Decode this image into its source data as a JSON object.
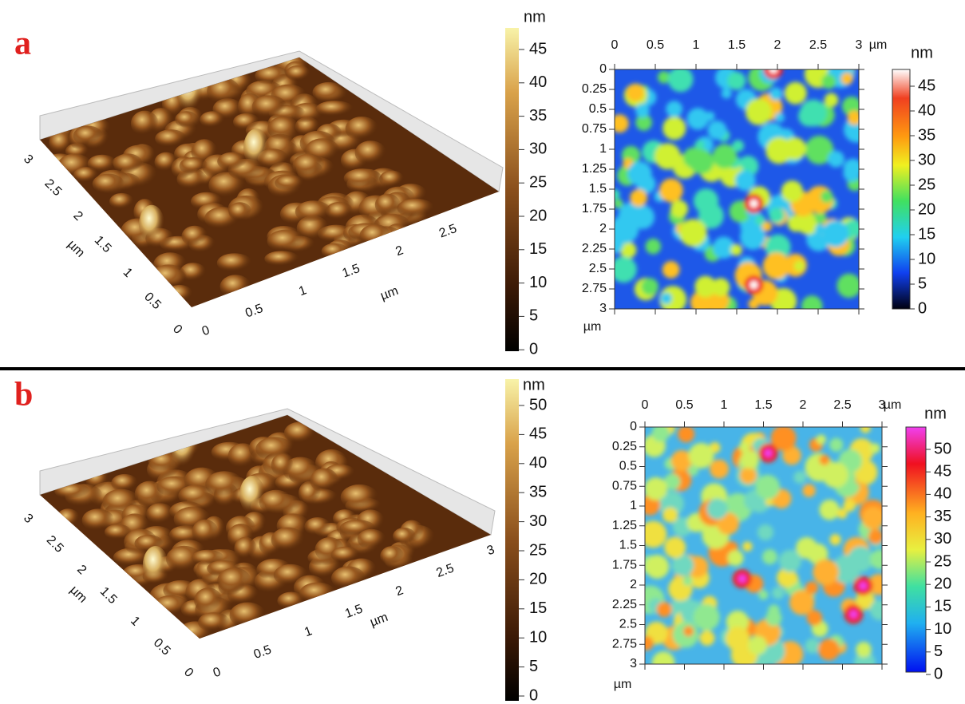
{
  "panels": [
    {
      "label": "a",
      "surface_3d": {
        "x_ticks": [
          0,
          0.5,
          1,
          1.5,
          2,
          2.5
        ],
        "x_unit": "µm",
        "y_ticks": [
          0,
          0.5,
          1,
          1.5,
          2,
          2.5,
          3
        ],
        "y_unit": "µm"
      },
      "colorbar_3d": {
        "unit": "nm",
        "ticks": [
          45,
          40,
          35,
          30,
          25,
          20,
          15,
          10,
          5,
          0
        ]
      },
      "map_2d": {
        "x_ticks": [
          0,
          0.5,
          1,
          1.5,
          2,
          2.5,
          3
        ],
        "x_unit": "µm",
        "y_ticks": [
          0,
          0.25,
          0.5,
          0.75,
          1,
          1.25,
          1.5,
          1.75,
          2,
          2.25,
          2.5,
          2.75,
          3
        ],
        "y_unit": "µm"
      },
      "colorbar_2d": {
        "unit": "nm",
        "ticks": [
          45,
          40,
          35,
          30,
          25,
          20,
          15,
          10,
          5,
          0
        ]
      }
    },
    {
      "label": "b",
      "surface_3d": {
        "x_ticks": [
          0,
          0.5,
          1,
          1.5,
          2,
          2.5,
          3
        ],
        "x_unit": "µm",
        "y_ticks": [
          0,
          0.5,
          1,
          1.5,
          2,
          2.5,
          3
        ],
        "y_unit": "µm"
      },
      "colorbar_3d": {
        "unit": "nm",
        "ticks": [
          50,
          45,
          40,
          35,
          30,
          25,
          20,
          15,
          10,
          5,
          0
        ]
      },
      "map_2d": {
        "x_ticks": [
          0,
          0.5,
          1,
          1.5,
          2,
          2.5,
          3
        ],
        "x_unit": "µm",
        "y_ticks": [
          0,
          0.25,
          0.5,
          0.75,
          1,
          1.25,
          1.5,
          1.75,
          2,
          2.25,
          2.5,
          2.75,
          3
        ],
        "y_unit": "µm"
      },
      "colorbar_2d": {
        "unit": "nm",
        "ticks": [
          50,
          45,
          40,
          35,
          30,
          25,
          20,
          15,
          10,
          5,
          0
        ]
      }
    }
  ]
}
